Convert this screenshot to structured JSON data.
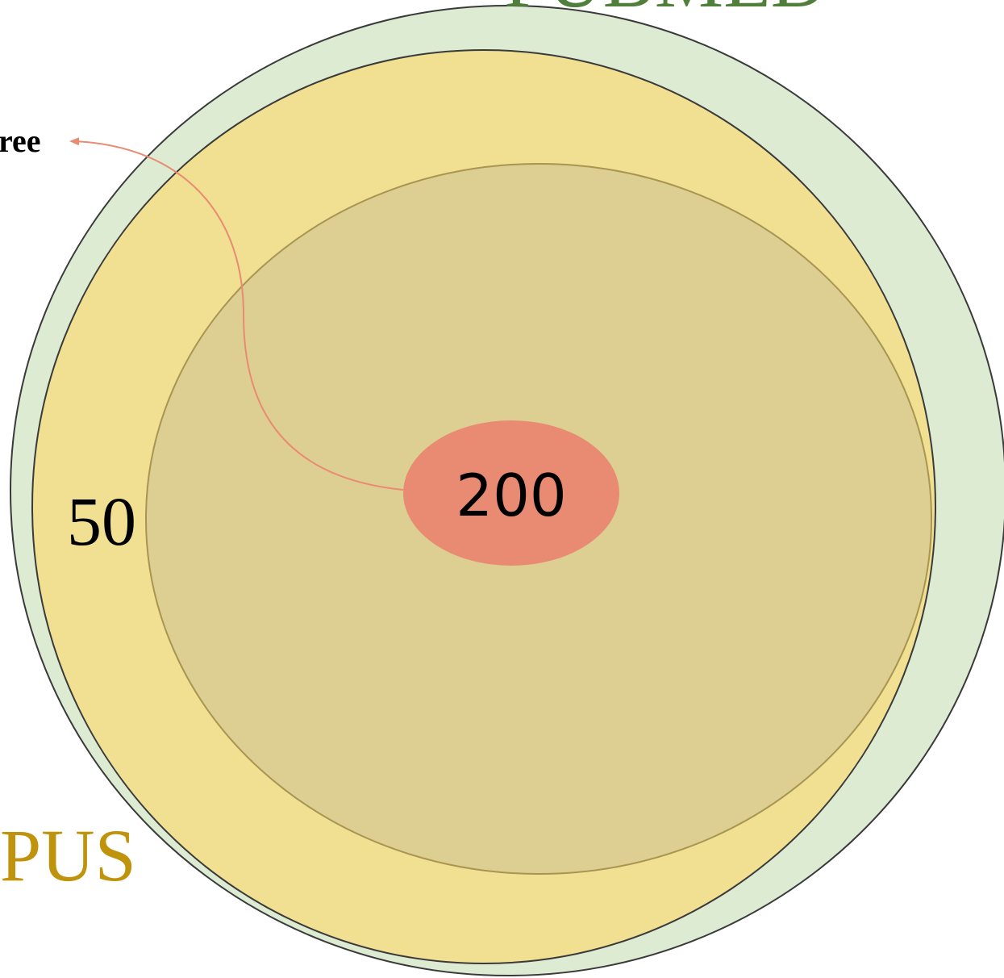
{
  "sets": {
    "pubmed": "PUBMED",
    "scopus": "PUS"
  },
  "callout": "ree",
  "regions": {
    "scopus_only": 50,
    "intersection": 200
  }
}
